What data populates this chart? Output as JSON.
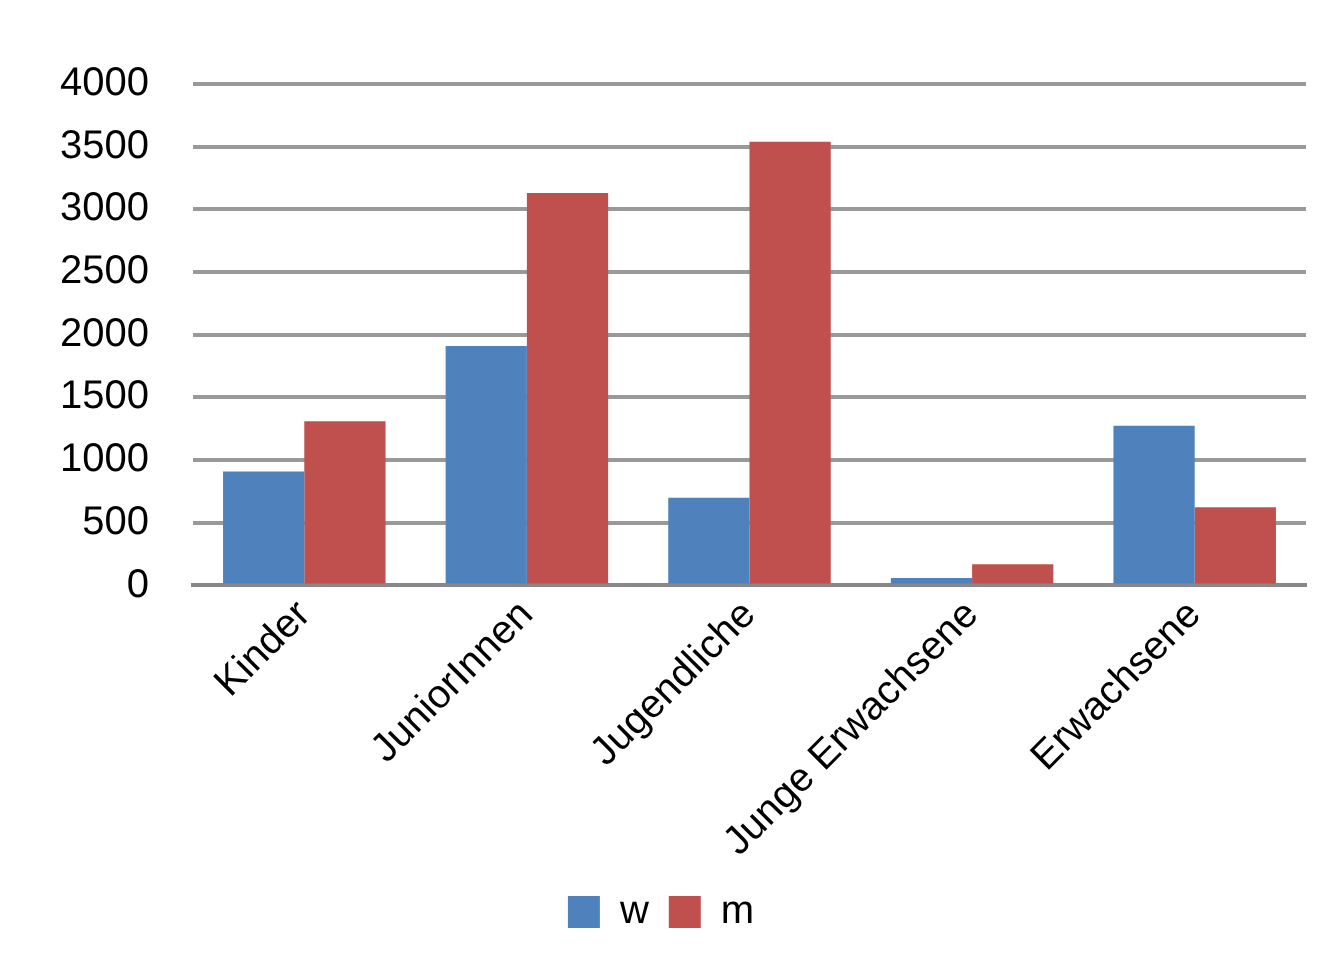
{
  "chart_data": {
    "type": "bar",
    "categories": [
      "Kinder",
      "JuniorInnen",
      "Jugendliche",
      "Junge Erwachsene",
      "Erwachsene"
    ],
    "series": [
      {
        "name": "w",
        "color": "#4f81bd",
        "values": [
          910,
          1910,
          700,
          60,
          1275
        ]
      },
      {
        "name": "m",
        "color": "#c0504d",
        "values": [
          1310,
          3130,
          3540,
          170,
          625
        ]
      }
    ],
    "ylim": [
      0,
      4000
    ],
    "yticks": [
      0,
      500,
      1000,
      1500,
      2000,
      2500,
      3000,
      3500,
      4000
    ],
    "grid": "y",
    "legend": "bottom"
  }
}
